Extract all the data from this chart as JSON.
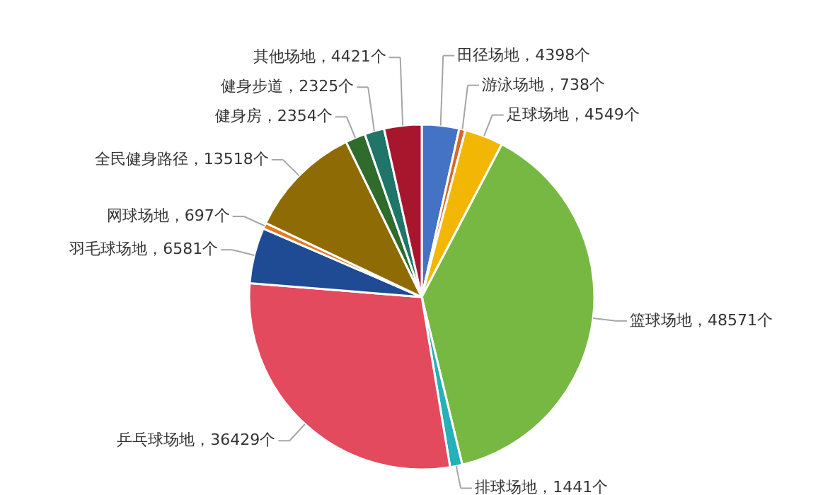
{
  "chart_data": {
    "type": "pie",
    "categories": [
      "田径场地",
      "游泳场地",
      "足球场地",
      "篮球场地",
      "排球场地",
      "乒乓球场地",
      "羽毛球场地",
      "网球场地",
      "全民健身路径",
      "健身房",
      "健身步道",
      "其他场地"
    ],
    "values": [
      4398,
      738,
      4549,
      48571,
      1441,
      36429,
      6581,
      697,
      13518,
      2354,
      2325,
      4421
    ],
    "colors": [
      "#4472c4",
      "#d5692b",
      "#f2b705",
      "#77b843",
      "#26b0b8",
      "#e34a5e",
      "#1f4a94",
      "#e07b25",
      "#8f6b05",
      "#2f6b2c",
      "#1e7568",
      "#a8162e"
    ],
    "value_labels": [
      "4398个",
      "738个",
      "4549个",
      "48571个",
      "1441个",
      "36429个",
      "6581个",
      "697个",
      "13518个",
      "2354个",
      "2325个",
      "4421个"
    ]
  }
}
